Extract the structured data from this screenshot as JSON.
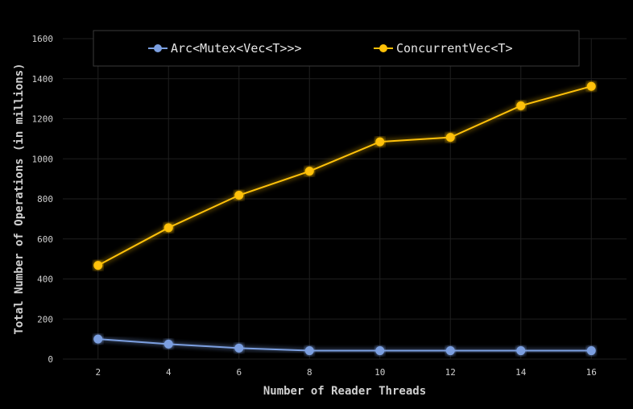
{
  "chart_data": {
    "type": "line",
    "title": "",
    "xlabel": "Number of Reader Threads",
    "ylabel": "Total Number of Operations (in millions)",
    "x": [
      2,
      4,
      6,
      8,
      10,
      12,
      14,
      16
    ],
    "xticks": [
      "2",
      "4",
      "6",
      "8",
      "10",
      "12",
      "14",
      "16"
    ],
    "yticks": [
      "0",
      "200",
      "400",
      "600",
      "800",
      "1000",
      "1200",
      "1400",
      "1600"
    ],
    "ylim": [
      0,
      1600
    ],
    "xlim": [
      1,
      17
    ],
    "grid": true,
    "legend_position": "top",
    "series": [
      {
        "name": "Arc<Mutex<Vec<T>>>",
        "color": "#7b9fe0",
        "values": [
          100,
          75,
          55,
          42,
          42,
          42,
          42,
          42
        ]
      },
      {
        "name": "ConcurrentVec<T>",
        "color": "#ffc107",
        "values": [
          468,
          656,
          818,
          938,
          1085,
          1107,
          1265,
          1362
        ]
      }
    ]
  }
}
